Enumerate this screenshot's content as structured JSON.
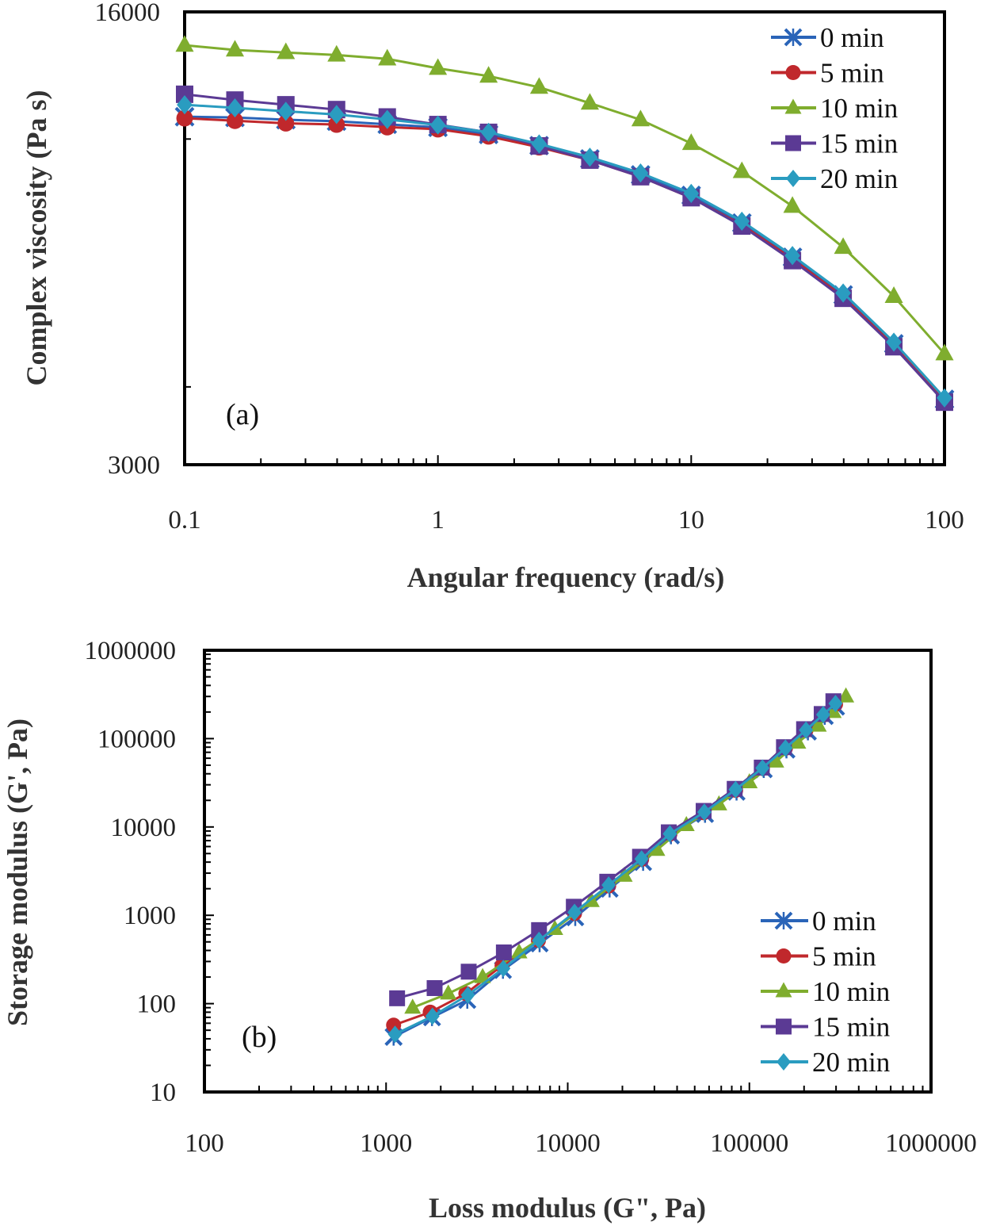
{
  "series_styles": [
    {
      "name": "0 min",
      "color": "#2a64b8",
      "marker": "asterisk"
    },
    {
      "name": "5 min",
      "color": "#c0282c",
      "marker": "circle"
    },
    {
      "name": "10 min",
      "color": "#7fad2e",
      "marker": "triangle"
    },
    {
      "name": "15 min",
      "color": "#5b3a94",
      "marker": "square"
    },
    {
      "name": "20 min",
      "color": "#2a9cc0",
      "marker": "diamond"
    }
  ],
  "chart_data": [
    {
      "type": "line",
      "panel_label": "(a)",
      "title": "",
      "xlabel": "Angular frequency (rad/s)",
      "ylabel": "Complex viscosity (Pa s)",
      "xscale": "log",
      "yscale": "log",
      "xlim": [
        0.1,
        100
      ],
      "ylim": [
        3000,
        16000
      ],
      "xticks": [
        0.1,
        1,
        10,
        100
      ],
      "xtick_labels": [
        "0.1",
        "1",
        "10",
        "100"
      ],
      "yticks": [
        3000,
        16000
      ],
      "ytick_labels": [
        "3000",
        "16000"
      ],
      "legend_position": "top-right",
      "grid": false,
      "x": [
        0.1,
        0.158,
        0.251,
        0.398,
        0.631,
        1,
        1.585,
        2.51,
        3.98,
        6.31,
        10,
        15.85,
        25.1,
        39.8,
        63.1,
        100
      ],
      "series": [
        {
          "name": "0 min",
          "values": [
            10860,
            10830,
            10740,
            10680,
            10560,
            10440,
            10170,
            9760,
            9290,
            8760,
            8120,
            7330,
            6460,
            5620,
            4690,
            3820
          ]
        },
        {
          "name": "5 min",
          "values": [
            10800,
            10700,
            10600,
            10550,
            10450,
            10370,
            10100,
            9700,
            9250,
            8700,
            8050,
            7280,
            6420,
            5580,
            4660,
            3800
          ]
        },
        {
          "name": "10 min",
          "values": [
            14145,
            13900,
            13770,
            13640,
            13450,
            12990,
            12620,
            12110,
            11420,
            10740,
            9840,
            8870,
            7800,
            6700,
            5590,
            4520
          ]
        },
        {
          "name": "15 min",
          "values": [
            11800,
            11550,
            11350,
            11150,
            10850,
            10550,
            10250,
            9750,
            9250,
            8700,
            8050,
            7250,
            6380,
            5550,
            4640,
            3780
          ]
        },
        {
          "name": "20 min",
          "values": [
            11350,
            11220,
            11080,
            10950,
            10750,
            10530,
            10250,
            9820,
            9350,
            8820,
            8180,
            7380,
            6500,
            5660,
            4720,
            3840
          ]
        }
      ]
    },
    {
      "type": "scatter",
      "panel_label": "(b)",
      "title": "",
      "xlabel": "Loss modulus (G\", Pa)",
      "ylabel": "Storage modulus (G', Pa)",
      "xscale": "log",
      "yscale": "log",
      "xlim": [
        100,
        1000000
      ],
      "ylim": [
        10,
        1000000
      ],
      "xticks": [
        100,
        1000,
        10000,
        100000,
        1000000
      ],
      "xtick_labels": [
        "100",
        "1000",
        "10000",
        "100000",
        "1000000"
      ],
      "yticks": [
        10,
        100,
        1000,
        10000,
        100000,
        1000000
      ],
      "ytick_labels": [
        "10",
        "100",
        "1000",
        "10000",
        "100000",
        "1000000"
      ],
      "legend_position": "bottom-right",
      "grid": false,
      "series": [
        {
          "name": "0 min",
          "x": [
            1100,
            1790,
            2800,
            4400,
            7000,
            11000,
            17000,
            26000,
            37000,
            57000,
            85000,
            120000,
            160000,
            210000,
            260000,
            300000
          ],
          "y": [
            42,
            70,
            110,
            240,
            480,
            950,
            2000,
            4000,
            8000,
            14000,
            25000,
            45000,
            75000,
            120000,
            180000,
            230000
          ]
        },
        {
          "name": "5 min",
          "x": [
            1100,
            1750,
            2750,
            4350,
            6900,
            10900,
            16800,
            25500,
            36500,
            56000,
            84000,
            118000,
            158000,
            205000,
            255000,
            298000
          ],
          "y": [
            57,
            80,
            130,
            270,
            520,
            1050,
            2150,
            4300,
            8300,
            14500,
            26000,
            46000,
            78000,
            125000,
            185000,
            245000
          ]
        },
        {
          "name": "10 min",
          "x": [
            1400,
            2200,
            3400,
            5400,
            8500,
            13500,
            20500,
            31000,
            45000,
            68000,
            100000,
            140000,
            185000,
            240000,
            290000,
            340000
          ],
          "y": [
            90,
            130,
            200,
            380,
            700,
            1450,
            2800,
            5500,
            10500,
            18000,
            32000,
            55000,
            90000,
            140000,
            200000,
            300000
          ]
        },
        {
          "name": "15 min",
          "x": [
            1150,
            1850,
            2850,
            4450,
            6950,
            10800,
            16500,
            25000,
            36000,
            56000,
            83000,
            117000,
            155000,
            200000,
            250000,
            290000
          ],
          "y": [
            115,
            150,
            230,
            380,
            680,
            1250,
            2400,
            4600,
            8700,
            15200,
            27000,
            47000,
            80000,
            128000,
            190000,
            265000
          ]
        },
        {
          "name": "20 min",
          "x": [
            1120,
            1800,
            2820,
            4420,
            6950,
            10900,
            16800,
            25500,
            36500,
            56500,
            84000,
            118000,
            158000,
            205000,
            255000,
            298000
          ],
          "y": [
            45,
            72,
            125,
            250,
            520,
            1080,
            2200,
            4350,
            8350,
            14700,
            26500,
            46500,
            78000,
            125000,
            187000,
            250000
          ]
        }
      ]
    }
  ]
}
